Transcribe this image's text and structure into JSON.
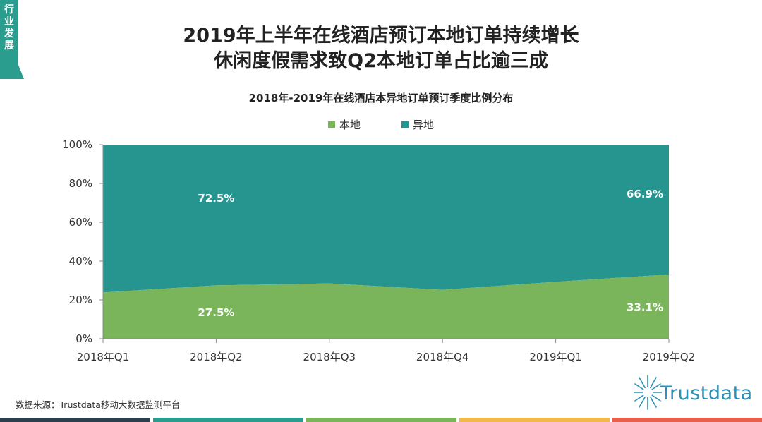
{
  "header": {
    "section_tag": "行业发展",
    "title_line1": "2019年上半年在线酒店预订本地订单持续增长",
    "title_line2": "休闲度假需求致Q2本地订单占比逾三成"
  },
  "chart_data": {
    "type": "area",
    "stacked": true,
    "title": "2018年-2019年在线酒店本异地订单预订季度比例分布",
    "categories": [
      "2018年Q1",
      "2018年Q2",
      "2018年Q3",
      "2018年Q4",
      "2019年Q1",
      "2019年Q2"
    ],
    "series": [
      {
        "name": "本地",
        "color": "#7ab55c",
        "values": [
          23.8,
          27.5,
          28.5,
          25.2,
          29.3,
          33.1
        ]
      },
      {
        "name": "异地",
        "color": "#27958f",
        "values": [
          76.2,
          72.5,
          71.5,
          74.8,
          70.7,
          66.9
        ]
      }
    ],
    "y_ticks": [
      "0%",
      "20%",
      "40%",
      "60%",
      "80%",
      "100%"
    ],
    "ylim": [
      0,
      100
    ],
    "legend_position": "top",
    "grid": false,
    "data_labels": [
      {
        "series": "异地",
        "category": "2018年Q2",
        "text": "72.5%"
      },
      {
        "series": "本地",
        "category": "2018年Q2",
        "text": "27.5%"
      },
      {
        "series": "异地",
        "category": "2019年Q2",
        "text": "66.9%"
      },
      {
        "series": "本地",
        "category": "2019年Q2",
        "text": "33.1%"
      }
    ]
  },
  "footer": {
    "source": "数据来源：Trustdata移动大数据监测平台",
    "logo_text": "Trustdata"
  },
  "colors": {
    "tag_bg": "#2a9d8f",
    "logo": "#2b8fb8",
    "bottom_bars": [
      "#2b3f4c",
      "#2a9d8f",
      "#7ab55c",
      "#f2b84b",
      "#e8604c"
    ]
  },
  "icons": {
    "logo_mark": "sunburst-logo-icon"
  }
}
